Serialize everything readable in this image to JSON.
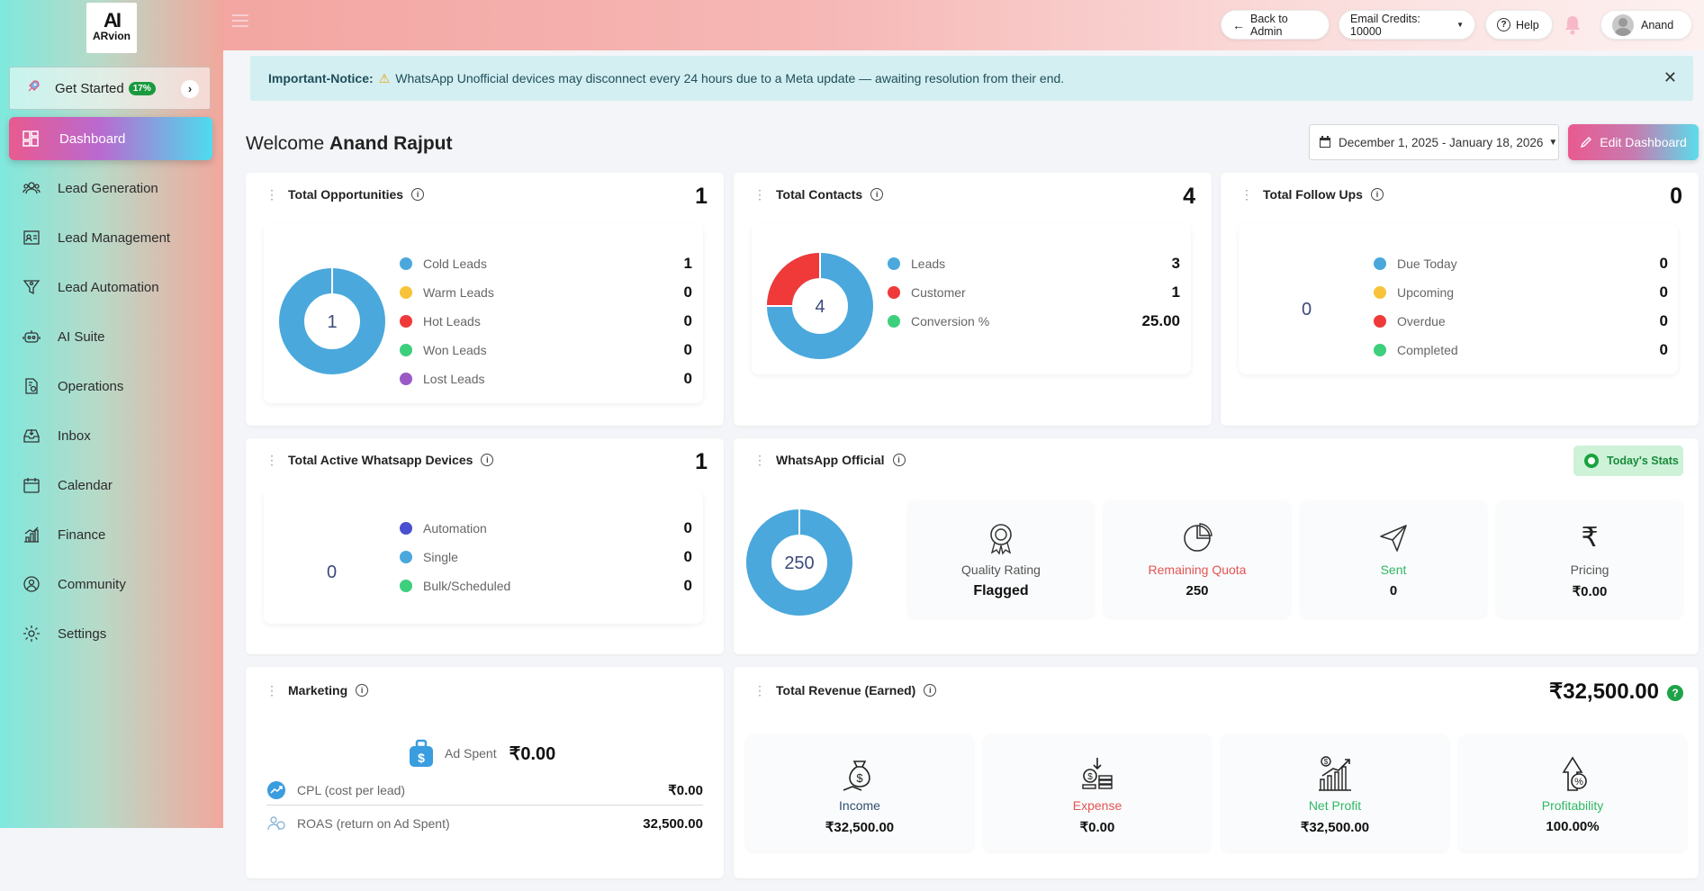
{
  "brand": {
    "logo_mark": "AI",
    "logo_name": "ARvion"
  },
  "sidebar": {
    "get_started": {
      "label": "Get Started",
      "progress_badge": "17%",
      "progress": 0.17
    },
    "active": "Dashboard",
    "items": [
      {
        "label": "Dashboard",
        "icon": "dashboard-icon"
      },
      {
        "label": "Lead Generation",
        "icon": "users-icon"
      },
      {
        "label": "Lead Management",
        "icon": "contact-card-icon"
      },
      {
        "label": "Lead Automation",
        "icon": "funnel-icon"
      },
      {
        "label": "AI Suite",
        "icon": "robot-icon"
      },
      {
        "label": "Operations",
        "icon": "document-gear-icon"
      },
      {
        "label": "Inbox",
        "icon": "inbox-icon"
      },
      {
        "label": "Calendar",
        "icon": "calendar-icon"
      },
      {
        "label": "Finance",
        "icon": "bar-chart-icon"
      },
      {
        "label": "Community",
        "icon": "globe-users-icon"
      },
      {
        "label": "Settings",
        "icon": "gear-icon"
      }
    ]
  },
  "topbar": {
    "back_label": "Back to Admin",
    "email_credits": "Email Credits: 10000",
    "help_label": "Help",
    "user_name": "Anand"
  },
  "notice": {
    "title": "Important-Notice:",
    "text": "WhatsApp Unofficial devices may disconnect every 24 hours due to a Meta update — awaiting resolution from their end."
  },
  "welcome": {
    "greeting": "Welcome",
    "name": "Anand Rajput"
  },
  "date_range": "December 1, 2025 - January 18, 2026",
  "edit_dashboard_label": "Edit Dashboard",
  "colors": {
    "blue": "#4aa8dc",
    "yellow": "#f6c33a",
    "red": "#f03a3a",
    "green": "#3ecf7c",
    "purple": "#9b59c6",
    "indigo": "#4a4ed0"
  },
  "opportunities": {
    "title": "Total Opportunities",
    "total": "1",
    "center": "1",
    "items": [
      {
        "label": "Cold Leads",
        "value": "1",
        "color": "#4aa8dc"
      },
      {
        "label": "Warm Leads",
        "value": "0",
        "color": "#f6c33a"
      },
      {
        "label": "Hot Leads",
        "value": "0",
        "color": "#f03a3a"
      },
      {
        "label": "Won Leads",
        "value": "0",
        "color": "#3ecf7c"
      },
      {
        "label": "Lost Leads",
        "value": "0",
        "color": "#9b59c6"
      }
    ]
  },
  "contacts": {
    "title": "Total Contacts",
    "total": "4",
    "center": "4",
    "items": [
      {
        "label": "Leads",
        "value": "3",
        "color": "#4aa8dc"
      },
      {
        "label": "Customer",
        "value": "1",
        "color": "#f03a3a"
      },
      {
        "label": "Conversion %",
        "value": "25.00",
        "color": "#3ecf7c"
      }
    ]
  },
  "followups": {
    "title": "Total Follow Ups",
    "total": "0",
    "center": "0",
    "items": [
      {
        "label": "Due Today",
        "value": "0",
        "color": "#4aa8dc"
      },
      {
        "label": "Upcoming",
        "value": "0",
        "color": "#f6c33a"
      },
      {
        "label": "Overdue",
        "value": "0",
        "color": "#f03a3a"
      },
      {
        "label": "Completed",
        "value": "0",
        "color": "#3ecf7c"
      }
    ]
  },
  "whatsapp_devices": {
    "title": "Total Active Whatsapp Devices",
    "total": "1",
    "center": "0",
    "items": [
      {
        "label": "Automation",
        "value": "0",
        "color": "#4a4ed0"
      },
      {
        "label": "Single",
        "value": "0",
        "color": "#4aa8dc"
      },
      {
        "label": "Bulk/Scheduled",
        "value": "0",
        "color": "#3ecf7c"
      }
    ]
  },
  "whatsapp_official": {
    "title": "WhatsApp Official",
    "todays_stats": "Today's Stats",
    "center": "250",
    "tiles": [
      {
        "label": "Quality Rating",
        "value": "Flagged",
        "color": "#555555",
        "icon": "award-icon"
      },
      {
        "label": "Remaining Quota",
        "value": "250",
        "color": "#e45454",
        "icon": "pie-chart-icon"
      },
      {
        "label": "Sent",
        "value": "0",
        "color": "#2fb864",
        "icon": "send-icon"
      },
      {
        "label": "Pricing",
        "value": "₹0.00",
        "color": "#555555",
        "icon": "rupee-icon"
      }
    ]
  },
  "marketing": {
    "title": "Marketing",
    "ad_spent_label": "Ad Spent",
    "ad_spent_value": "₹0.00",
    "cpl_label": "CPL (cost per lead)",
    "cpl_value": "₹0.00",
    "roas_label": "ROAS (return on Ad Spent)",
    "roas_value": "32,500.00"
  },
  "revenue": {
    "title": "Total Revenue (Earned)",
    "total": "₹32,500.00",
    "help": "?",
    "tiles": [
      {
        "label": "Income",
        "value": "₹32,500.00",
        "color": "#2f4f6f",
        "icon": "money-bag-icon"
      },
      {
        "label": "Expense",
        "value": "₹0.00",
        "color": "#e45454",
        "icon": "coins-expense-icon"
      },
      {
        "label": "Net Profit",
        "value": "₹32,500.00",
        "color": "#2fb864",
        "icon": "growth-chart-icon"
      },
      {
        "label": "Profitability",
        "value": "100.00%",
        "color": "#2fb864",
        "icon": "percent-house-icon"
      }
    ]
  }
}
